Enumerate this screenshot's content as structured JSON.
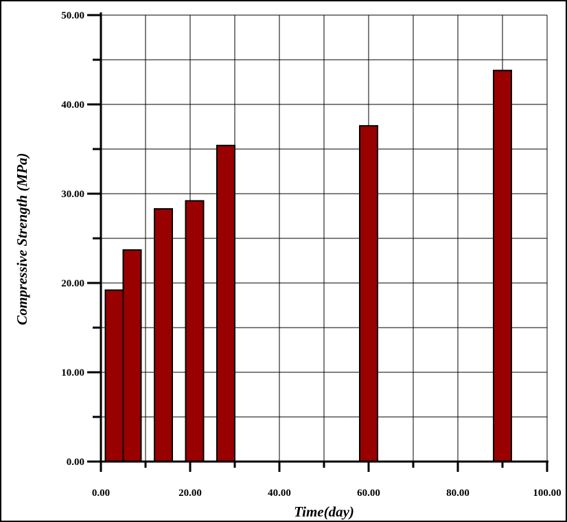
{
  "chart_data": {
    "type": "bar",
    "title": "",
    "xlabel": "Time(day)",
    "ylabel": "Compressive Strength (MPa)",
    "xlim": [
      0,
      100
    ],
    "ylim": [
      0,
      50
    ],
    "x_ticks": [
      0,
      20,
      40,
      60,
      80,
      100
    ],
    "x_tick_labels": [
      "0.00",
      "20.00",
      "40.00",
      "60.00",
      "80.00",
      "100.00"
    ],
    "y_ticks": [
      0,
      10,
      20,
      30,
      40,
      50
    ],
    "y_tick_labels": [
      "0.00",
      "10.00",
      "20.00",
      "30.00",
      "40.00",
      "50.00"
    ],
    "grid": true,
    "bar_color": "#990000",
    "bars": [
      {
        "x": 3,
        "value": 19.2
      },
      {
        "x": 7,
        "value": 23.7
      },
      {
        "x": 14,
        "value": 28.3
      },
      {
        "x": 21,
        "value": 29.2
      },
      {
        "x": 28,
        "value": 35.4
      },
      {
        "x": 60,
        "value": 37.6
      },
      {
        "x": 90,
        "value": 43.8
      }
    ]
  }
}
